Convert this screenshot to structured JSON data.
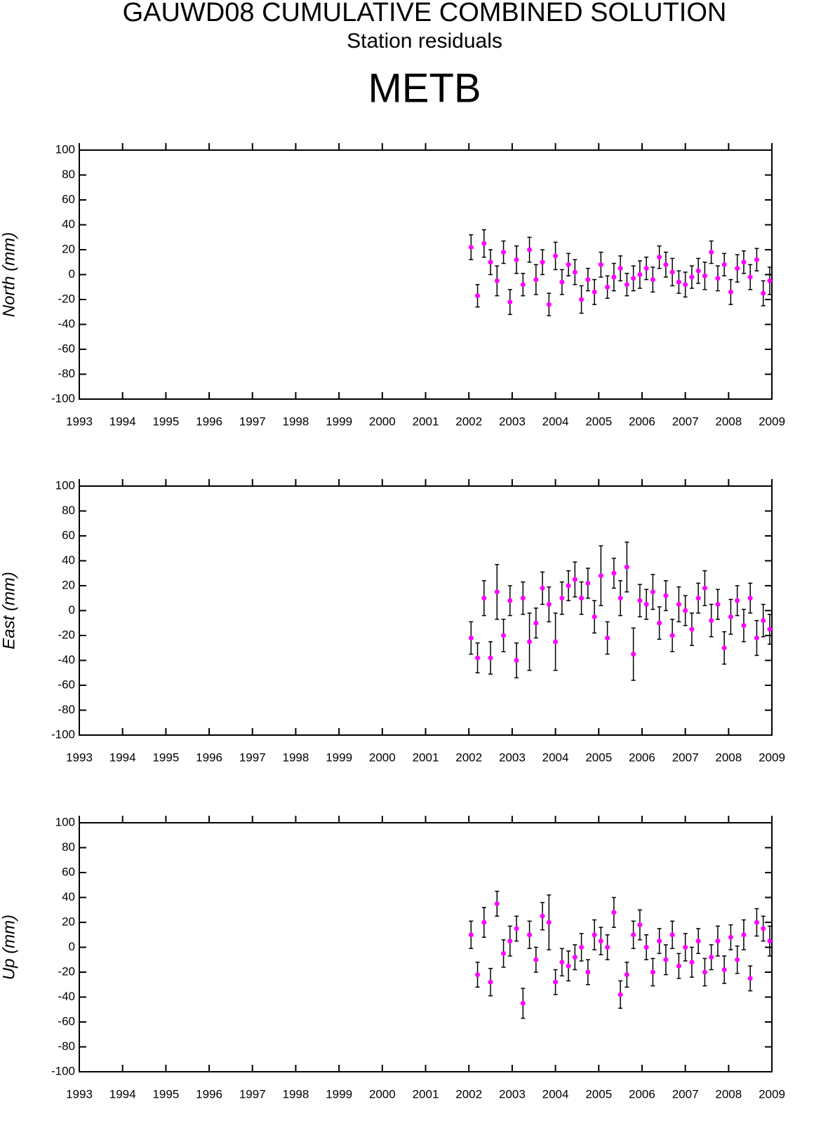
{
  "header": {
    "title": "GAUWD08 CUMULATIVE COMBINED SOLUTION",
    "subtitle": "Station residuals",
    "station": "METB"
  },
  "chart_data": [
    {
      "type": "scatter",
      "ylabel": "North (mm)",
      "color": "#ff00ff",
      "xlim": [
        1993,
        2009
      ],
      "ylim": [
        -100,
        100
      ],
      "xticks": [
        1993,
        1994,
        1995,
        1996,
        1997,
        1998,
        1999,
        2000,
        2001,
        2002,
        2003,
        2004,
        2005,
        2006,
        2007,
        2008,
        2009
      ],
      "yticks": [
        -100,
        -80,
        -60,
        -40,
        -20,
        0,
        20,
        40,
        60,
        80,
        100
      ],
      "x": [
        2002.05,
        2002.2,
        2002.35,
        2002.5,
        2002.65,
        2002.8,
        2002.95,
        2003.1,
        2003.25,
        2003.4,
        2003.55,
        2003.7,
        2003.85,
        2004.0,
        2004.15,
        2004.3,
        2004.45,
        2004.6,
        2004.75,
        2004.9,
        2005.05,
        2005.2,
        2005.35,
        2005.5,
        2005.65,
        2005.8,
        2005.95,
        2006.1,
        2006.25,
        2006.4,
        2006.55,
        2006.7,
        2006.85,
        2007.0,
        2007.15,
        2007.3,
        2007.45,
        2007.6,
        2007.75,
        2007.9,
        2008.05,
        2008.2,
        2008.35,
        2008.5,
        2008.65,
        2008.8,
        2008.95
      ],
      "values": [
        22,
        -17,
        25,
        10,
        -5,
        18,
        -22,
        12,
        -8,
        20,
        -4,
        10,
        -24,
        15,
        -6,
        8,
        2,
        -20,
        -4,
        -14,
        8,
        -10,
        -2,
        5,
        -8,
        -3,
        0,
        5,
        -4,
        14,
        8,
        2,
        -6,
        -8,
        -2,
        3,
        -1,
        18,
        -3,
        8,
        -14,
        5,
        10,
        -2,
        12,
        -15,
        -5
      ],
      "errors": [
        10,
        9,
        11,
        10,
        12,
        9,
        10,
        11,
        9,
        10,
        12,
        10,
        9,
        11,
        10,
        9,
        10,
        11,
        9,
        10,
        10,
        9,
        11,
        10,
        9,
        10,
        11,
        9,
        10,
        9,
        10,
        11,
        9,
        10,
        9,
        10,
        11,
        9,
        10,
        9,
        10,
        11,
        9,
        10,
        9,
        10,
        11
      ]
    },
    {
      "type": "scatter",
      "ylabel": "East (mm)",
      "color": "#ff00ff",
      "xlim": [
        1993,
        2009
      ],
      "ylim": [
        -100,
        100
      ],
      "xticks": [
        1993,
        1994,
        1995,
        1996,
        1997,
        1998,
        1999,
        2000,
        2001,
        2002,
        2003,
        2004,
        2005,
        2006,
        2007,
        2008,
        2009
      ],
      "yticks": [
        -100,
        -80,
        -60,
        -40,
        -20,
        0,
        20,
        40,
        60,
        80,
        100
      ],
      "x": [
        2002.05,
        2002.2,
        2002.35,
        2002.5,
        2002.65,
        2002.8,
        2002.95,
        2003.1,
        2003.25,
        2003.4,
        2003.55,
        2003.7,
        2003.85,
        2004.0,
        2004.15,
        2004.3,
        2004.45,
        2004.6,
        2004.75,
        2004.9,
        2005.05,
        2005.2,
        2005.35,
        2005.5,
        2005.65,
        2005.8,
        2005.95,
        2006.1,
        2006.25,
        2006.4,
        2006.55,
        2006.7,
        2006.85,
        2007.0,
        2007.15,
        2007.3,
        2007.45,
        2007.6,
        2007.75,
        2007.9,
        2008.05,
        2008.2,
        2008.35,
        2008.5,
        2008.65,
        2008.8,
        2008.95
      ],
      "values": [
        -22,
        -38,
        10,
        -38,
        15,
        -20,
        8,
        -40,
        10,
        -25,
        -10,
        18,
        5,
        -25,
        10,
        20,
        25,
        10,
        22,
        -5,
        28,
        -22,
        30,
        10,
        35,
        -35,
        8,
        5,
        15,
        -10,
        12,
        -20,
        5,
        0,
        -15,
        10,
        18,
        -8,
        5,
        -30,
        -5,
        8,
        -12,
        10,
        -22,
        -8,
        -15
      ],
      "errors": [
        13,
        12,
        14,
        13,
        22,
        13,
        12,
        14,
        13,
        23,
        12,
        13,
        14,
        23,
        13,
        12,
        14,
        13,
        12,
        13,
        24,
        13,
        12,
        14,
        20,
        21,
        13,
        12,
        14,
        13,
        12,
        13,
        14,
        12,
        13,
        12,
        14,
        13,
        12,
        13,
        14,
        12,
        13,
        12,
        14,
        13,
        12
      ]
    },
    {
      "type": "scatter",
      "ylabel": "Up (mm)",
      "color": "#ff00ff",
      "xlim": [
        1993,
        2009
      ],
      "ylim": [
        -100,
        100
      ],
      "xticks": [
        1993,
        1994,
        1995,
        1996,
        1997,
        1998,
        1999,
        2000,
        2001,
        2002,
        2003,
        2004,
        2005,
        2006,
        2007,
        2008,
        2009
      ],
      "yticks": [
        -100,
        -80,
        -60,
        -40,
        -20,
        0,
        20,
        40,
        60,
        80,
        100
      ],
      "x": [
        2002.05,
        2002.2,
        2002.35,
        2002.5,
        2002.65,
        2002.8,
        2002.95,
        2003.1,
        2003.25,
        2003.4,
        2003.55,
        2003.7,
        2003.85,
        2004.0,
        2004.15,
        2004.3,
        2004.45,
        2004.6,
        2004.75,
        2004.9,
        2005.05,
        2005.2,
        2005.35,
        2005.5,
        2005.65,
        2005.8,
        2005.95,
        2006.1,
        2006.25,
        2006.4,
        2006.55,
        2006.7,
        2006.85,
        2007.0,
        2007.15,
        2007.3,
        2007.45,
        2007.6,
        2007.75,
        2007.9,
        2008.05,
        2008.2,
        2008.35,
        2008.5,
        2008.65,
        2008.8,
        2008.95
      ],
      "values": [
        10,
        -22,
        20,
        -28,
        35,
        -5,
        5,
        15,
        -45,
        10,
        -10,
        25,
        20,
        -28,
        -12,
        -15,
        -8,
        0,
        -20,
        10,
        5,
        0,
        28,
        -38,
        -22,
        10,
        18,
        0,
        -20,
        5,
        -10,
        10,
        -15,
        0,
        -12,
        5,
        -20,
        -8,
        5,
        -18,
        8,
        -10,
        10,
        -25,
        20,
        15,
        5
      ],
      "errors": [
        11,
        10,
        12,
        11,
        10,
        11,
        12,
        10,
        12,
        11,
        10,
        11,
        22,
        10,
        11,
        12,
        10,
        11,
        10,
        12,
        11,
        10,
        12,
        11,
        10,
        11,
        12,
        10,
        11,
        10,
        12,
        11,
        10,
        11,
        12,
        10,
        11,
        10,
        12,
        11,
        10,
        11,
        12,
        10,
        11,
        10,
        12
      ]
    }
  ]
}
